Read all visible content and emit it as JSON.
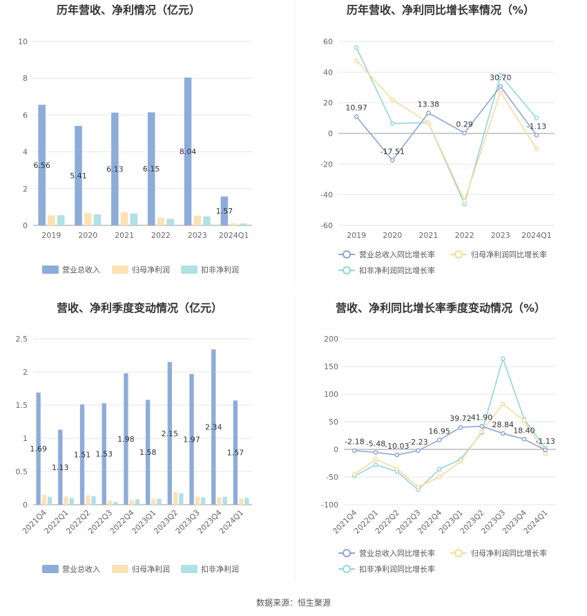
{
  "footer": "数据来源：恒生聚源",
  "colors": {
    "revenue": "#8eacd9",
    "net_profit": "#fce2b3",
    "deducted_profit": "#b0e1e5",
    "revenue_line": "#8aa6d4",
    "net_profit_line": "#f9d99a",
    "deducted_line": "#8fd7dc"
  },
  "chart_data": [
    {
      "type": "bar",
      "title": "历年营收、净利情况（亿元）",
      "categories": [
        "2019",
        "2020",
        "2021",
        "2022",
        "2023",
        "2024Q1"
      ],
      "ylim": [
        0,
        10
      ],
      "yticks": [
        0,
        2,
        4,
        6,
        8,
        10
      ],
      "grid": true,
      "legend_position": "bottom",
      "series": [
        {
          "name": "营业总收入",
          "values": [
            6.56,
            5.41,
            6.13,
            6.15,
            8.04,
            1.57
          ],
          "labels": [
            "6.56",
            "5.41",
            "6.13",
            "6.15",
            "8.04",
            "1.57"
          ]
        },
        {
          "name": "归母净利润",
          "values": [
            0.55,
            0.68,
            0.72,
            0.41,
            0.53,
            0.11
          ]
        },
        {
          "name": "扣非净利润",
          "values": [
            0.55,
            0.6,
            0.65,
            0.36,
            0.49,
            0.1
          ]
        }
      ]
    },
    {
      "type": "line",
      "title": "历年营收、净利同比增长率情况（%）",
      "categories": [
        "2019",
        "2020",
        "2021",
        "2022",
        "2023",
        "2024Q1"
      ],
      "ylim": [
        -60,
        60
      ],
      "yticks": [
        -60,
        -40,
        -20,
        0,
        20,
        40,
        60
      ],
      "grid": true,
      "legend_position": "bottom",
      "series": [
        {
          "name": "营业总收入同比增长率",
          "values": [
            10.97,
            -17.51,
            13.38,
            0.29,
            30.7,
            -1.13
          ],
          "labels": [
            "10.97",
            "-17.51",
            "13.38",
            "0.29",
            "30.70",
            "-1.13"
          ]
        },
        {
          "name": "归母净利润同比增长率",
          "values": [
            47.5,
            22.0,
            7.0,
            -44.0,
            27.0,
            -10.0
          ]
        },
        {
          "name": "扣非净利润同比增长率",
          "values": [
            56.0,
            6.5,
            7.0,
            -46.0,
            38.0,
            10.0
          ]
        }
      ]
    },
    {
      "type": "bar",
      "title": "营收、净利季度变动情况（亿元）",
      "categories": [
        "2021Q4",
        "2022Q1",
        "2022Q2",
        "2022Q3",
        "2022Q4",
        "2023Q1",
        "2023Q2",
        "2023Q3",
        "2023Q4",
        "2024Q1"
      ],
      "ylim": [
        0,
        2.5
      ],
      "yticks": [
        0,
        0.5,
        1,
        1.5,
        2,
        2.5
      ],
      "grid": true,
      "legend_position": "bottom",
      "series": [
        {
          "name": "营业总收入",
          "values": [
            1.69,
            1.13,
            1.51,
            1.53,
            1.98,
            1.58,
            2.15,
            1.97,
            2.34,
            1.57
          ],
          "labels": [
            "1.69",
            "1.13",
            "1.51",
            "1.53",
            "1.98",
            "1.58",
            "2.15",
            "1.97",
            "2.34",
            "1.57"
          ]
        },
        {
          "name": "归母净利润",
          "values": [
            0.15,
            0.12,
            0.14,
            0.06,
            0.07,
            0.09,
            0.19,
            0.12,
            0.11,
            0.09
          ]
        },
        {
          "name": "扣非净利润",
          "values": [
            0.12,
            0.1,
            0.13,
            0.04,
            0.08,
            0.09,
            0.17,
            0.11,
            0.12,
            0.1
          ]
        }
      ]
    },
    {
      "type": "line",
      "title": "营收、净利同比增长率季度变动情况（%）",
      "categories": [
        "2021Q4",
        "2022Q1",
        "2022Q2",
        "2022Q3",
        "2022Q4",
        "2023Q1",
        "2023Q2",
        "2023Q3",
        "2023Q4",
        "2024Q1"
      ],
      "ylim": [
        -100,
        200
      ],
      "yticks": [
        -100,
        -50,
        0,
        50,
        100,
        150,
        200
      ],
      "grid": true,
      "legend_position": "bottom",
      "series": [
        {
          "name": "营业总收入同比增长率",
          "values": [
            -2.18,
            -5.48,
            -10.03,
            -2.23,
            16.95,
            39.72,
            41.9,
            28.84,
            18.4,
            -1.13
          ],
          "labels": [
            "-2.18",
            "-5.48",
            "-10.03",
            "-2.23",
            "16.95",
            "39.72",
            "41.90",
            "28.84",
            "18.40",
            "-1.13"
          ]
        },
        {
          "name": "归母净利润同比增长率",
          "values": [
            -45,
            -18,
            -35,
            -68,
            -50,
            -22,
            32,
            82,
            52,
            -8
          ]
        },
        {
          "name": "扣非净利润同比增长率",
          "values": [
            -48,
            -28,
            -40,
            -73,
            -36,
            -18,
            30,
            164,
            55,
            2
          ]
        }
      ]
    }
  ]
}
